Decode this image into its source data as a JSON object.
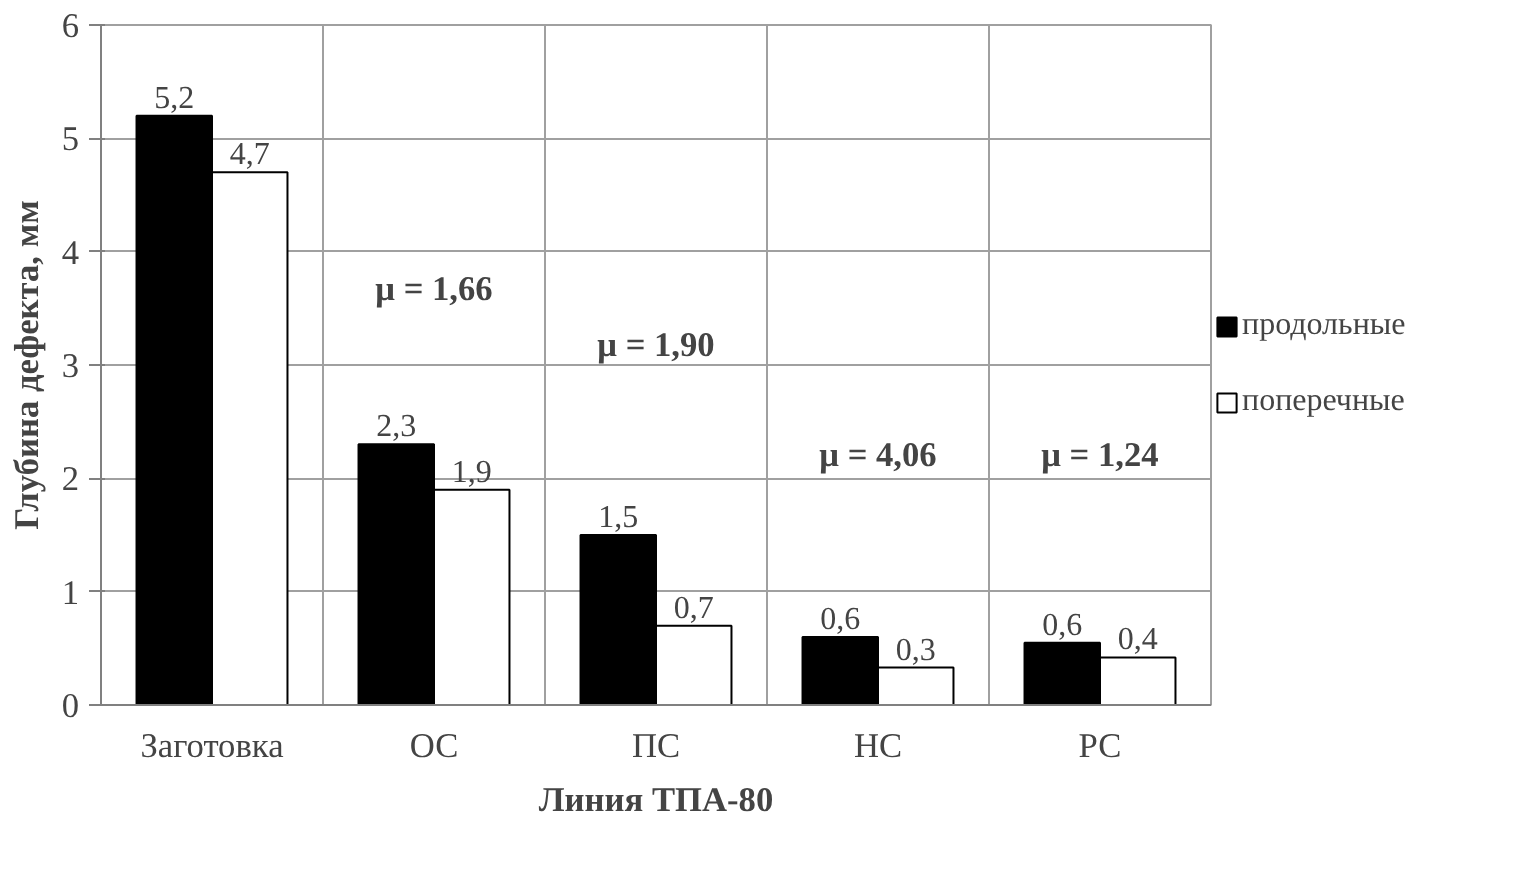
{
  "chart_data": {
    "type": "bar",
    "categories": [
      "Заготовка",
      "ОС",
      "ПС",
      "НС",
      "РС"
    ],
    "series": [
      {
        "name": "продольные",
        "color": "#000000",
        "values": [
          5.2,
          2.3,
          1.5,
          0.6,
          0.55
        ],
        "value_labels": [
          "5,2",
          "2,3",
          "1,5",
          "0,6",
          "0,6"
        ]
      },
      {
        "name": "поперечные",
        "color": "#ffffff",
        "values": [
          4.7,
          1.9,
          0.7,
          0.33,
          0.42
        ],
        "value_labels": [
          "4,7",
          "1,9",
          "0,7",
          "0,3",
          "0,4"
        ]
      }
    ],
    "ylim": [
      0,
      6
    ],
    "yticks": [
      0,
      1,
      2,
      3,
      4,
      5,
      6
    ],
    "ylabel": "Глубина дефекта, мм",
    "xlabel": "Линия ТПА-80",
    "annotations": [
      "μ = 1,66",
      "μ = 1,90",
      "μ = 4,06",
      "μ = 1,24"
    ],
    "grid": true,
    "legend": "right"
  }
}
